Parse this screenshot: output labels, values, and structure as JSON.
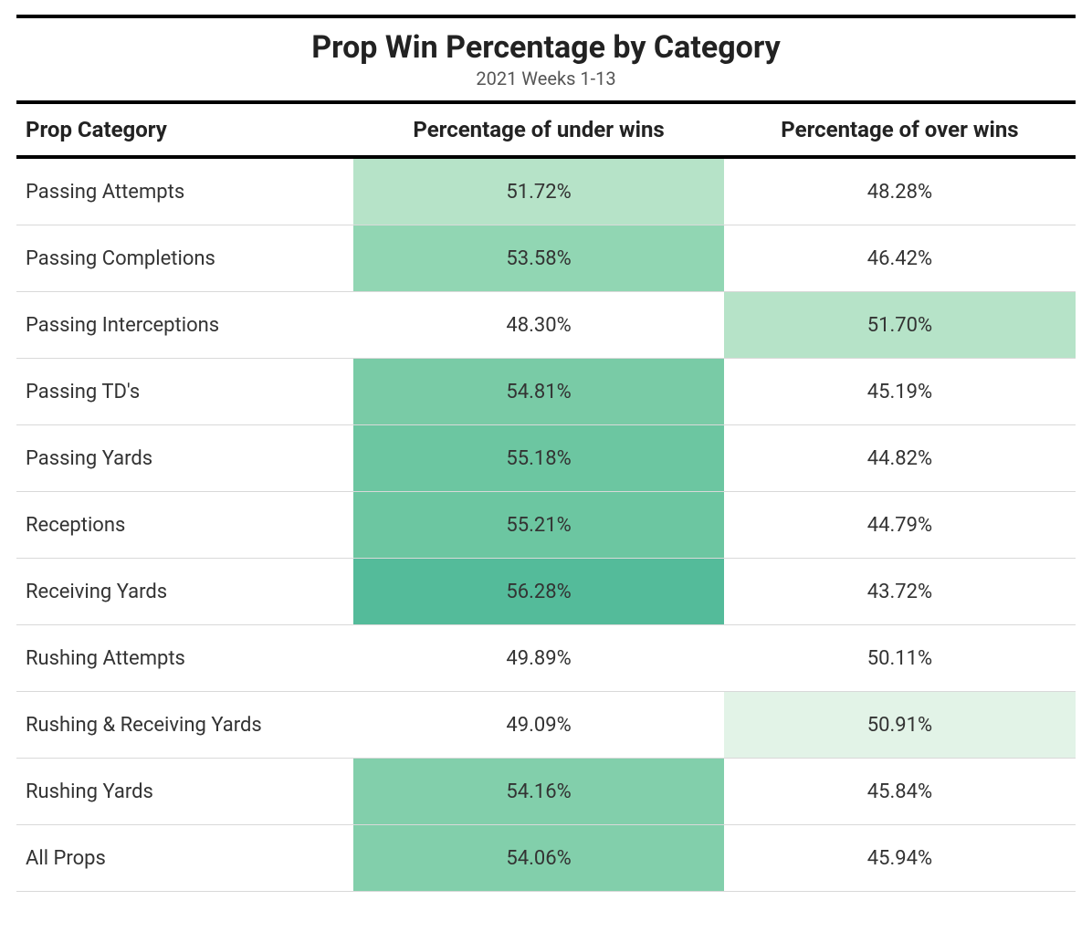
{
  "table": {
    "type": "table",
    "title": "Prop Win Percentage by Category",
    "subtitle": "2021 Weeks 1-13",
    "title_fontsize": 34,
    "subtitle_fontsize": 20,
    "title_color": "#222222",
    "subtitle_color": "#555555",
    "background_color": "#ffffff",
    "border_color": "#000000",
    "row_divider_color": "#d9d9d9",
    "cell_fontsize": 22,
    "header_fontsize": 24,
    "columns": [
      {
        "key": "category",
        "label": "Prop Category",
        "align": "left"
      },
      {
        "key": "under",
        "label": "Percentage of under wins",
        "align": "center"
      },
      {
        "key": "over",
        "label": "Percentage of over wins",
        "align": "center"
      }
    ],
    "rows": [
      {
        "category": "Passing Attempts",
        "under": "51.72%",
        "under_bg": "#b6e3c8",
        "over": "48.28%",
        "over_bg": "#ffffff"
      },
      {
        "category": "Passing Completions",
        "under": "53.58%",
        "under_bg": "#91d6b3",
        "over": "46.42%",
        "over_bg": "#ffffff"
      },
      {
        "category": "Passing Interceptions",
        "under": "48.30%",
        "under_bg": "#ffffff",
        "over": "51.70%",
        "over_bg": "#b6e3c8"
      },
      {
        "category": "Passing TD's",
        "under": "54.81%",
        "under_bg": "#79cba6",
        "over": "45.19%",
        "over_bg": "#ffffff"
      },
      {
        "category": "Passing Yards",
        "under": "55.18%",
        "under_bg": "#6cc6a1",
        "over": "44.82%",
        "over_bg": "#ffffff"
      },
      {
        "category": "Receptions",
        "under": "55.21%",
        "under_bg": "#6cc6a1",
        "over": "44.79%",
        "over_bg": "#ffffff"
      },
      {
        "category": "Receiving Yards",
        "under": "56.28%",
        "under_bg": "#54bb9a",
        "over": "43.72%",
        "over_bg": "#ffffff"
      },
      {
        "category": "Rushing Attempts",
        "under": "49.89%",
        "under_bg": "#ffffff",
        "over": "50.11%",
        "over_bg": "#ffffff"
      },
      {
        "category": "Rushing & Receiving Yards",
        "under": "49.09%",
        "under_bg": "#ffffff",
        "over": "50.91%",
        "over_bg": "#e2f3e7"
      },
      {
        "category": "Rushing Yards",
        "under": "54.16%",
        "under_bg": "#82cfab",
        "over": "45.84%",
        "over_bg": "#ffffff"
      },
      {
        "category": "All Props",
        "under": "54.06%",
        "under_bg": "#82cfab",
        "over": "45.94%",
        "over_bg": "#ffffff"
      }
    ]
  }
}
